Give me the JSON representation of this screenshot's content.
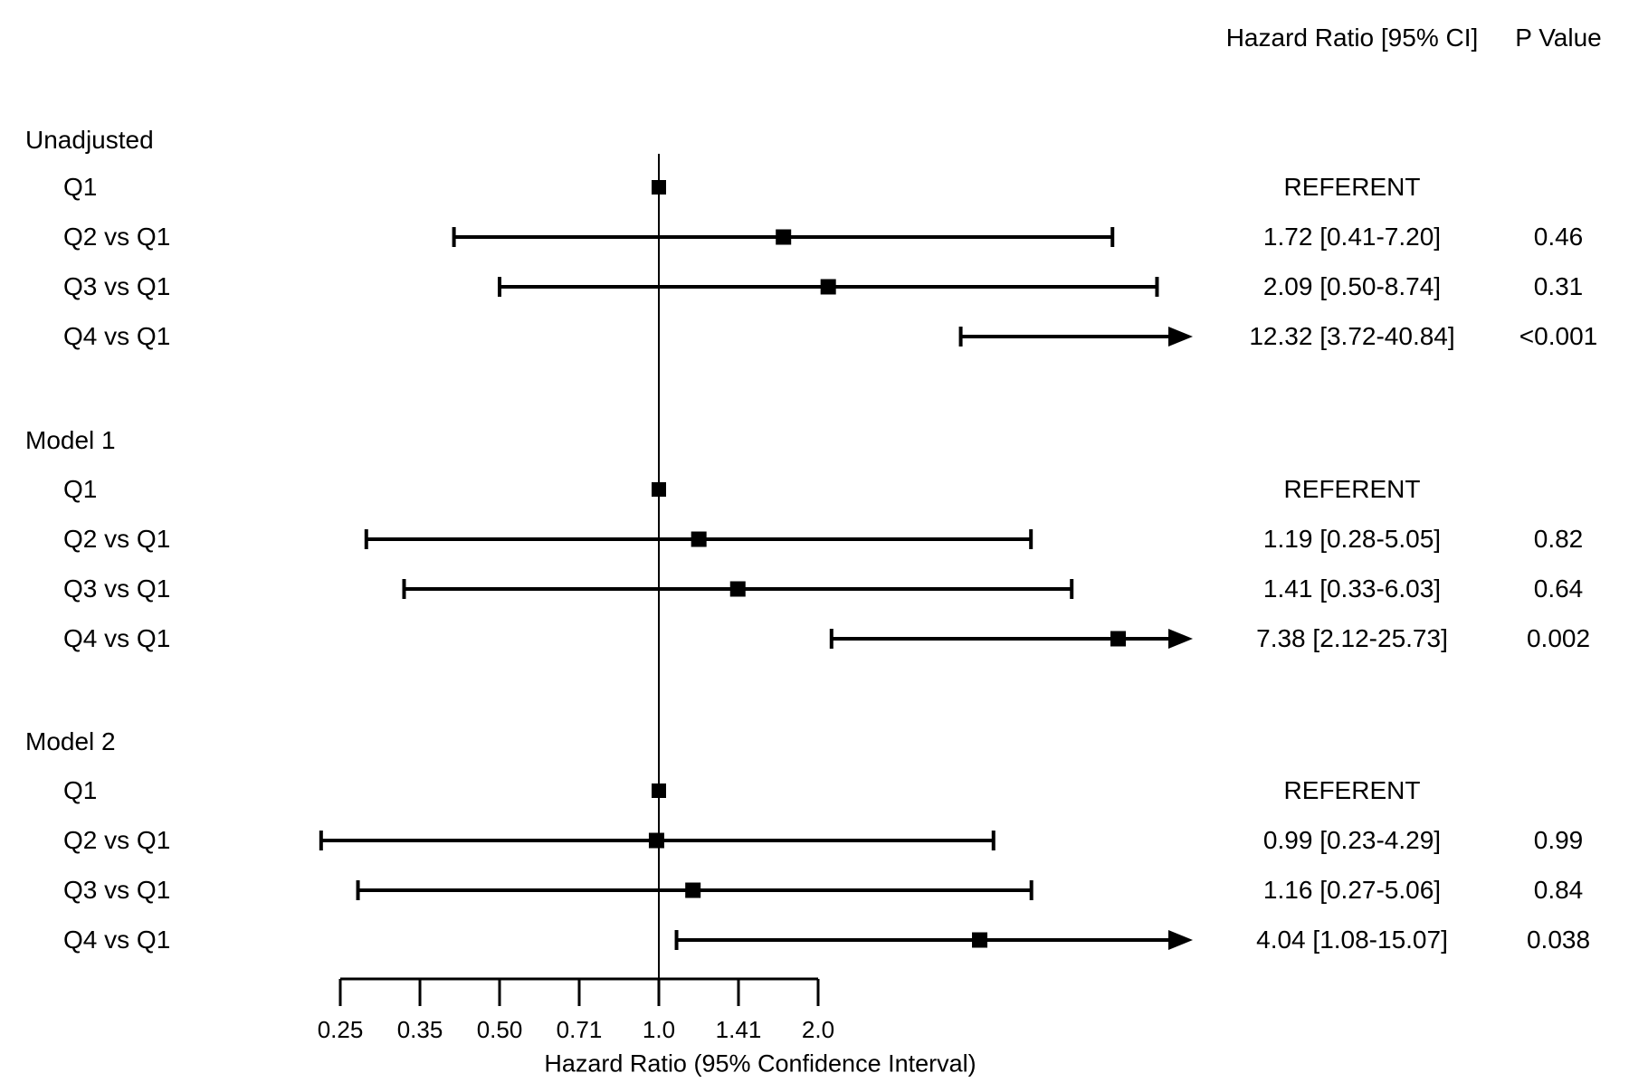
{
  "header": {
    "hr_col": "Hazard Ratio [95% CI]",
    "p_col": "P Value"
  },
  "chart_data": {
    "type": "forest",
    "x_axis": {
      "label": "Hazard Ratio (95% Confidence Interval)",
      "scale": "log2",
      "reference_line": 1.0,
      "ticks": [
        "0.25",
        "0.35",
        "0.50",
        "0.71",
        "1.0",
        "1.41",
        "2.0"
      ],
      "tick_values": [
        0.25,
        0.3536,
        0.5,
        0.7071,
        1.0,
        1.4142,
        2.0
      ],
      "arrow_clip_hr": 10.0
    },
    "groups": [
      {
        "label": "Unadjusted",
        "rows": [
          {
            "label": "Q1",
            "referent": true,
            "hr": 1.0,
            "hr_text": "REFERENT",
            "p_text": ""
          },
          {
            "label": "Q2 vs Q1",
            "referent": false,
            "hr": 1.72,
            "ci_low": 0.41,
            "ci_high": 7.2,
            "hr_text": "1.72 [0.41-7.20]",
            "p_text": "0.46"
          },
          {
            "label": "Q3 vs Q1",
            "referent": false,
            "hr": 2.09,
            "ci_low": 0.5,
            "ci_high": 8.74,
            "hr_text": "2.09 [0.50-8.74]",
            "p_text": "0.31"
          },
          {
            "label": "Q4 vs Q1",
            "referent": false,
            "hr": 12.32,
            "ci_low": 3.72,
            "ci_high": 40.84,
            "hr_text": "12.32 [3.72-40.84]",
            "p_text": "<0.001"
          }
        ]
      },
      {
        "label": "Model 1",
        "rows": [
          {
            "label": "Q1",
            "referent": true,
            "hr": 1.0,
            "hr_text": "REFERENT",
            "p_text": ""
          },
          {
            "label": "Q2 vs Q1",
            "referent": false,
            "hr": 1.19,
            "ci_low": 0.28,
            "ci_high": 5.05,
            "hr_text": "1.19 [0.28-5.05]",
            "p_text": "0.82"
          },
          {
            "label": "Q3 vs Q1",
            "referent": false,
            "hr": 1.41,
            "ci_low": 0.33,
            "ci_high": 6.03,
            "hr_text": "1.41 [0.33-6.03]",
            "p_text": "0.64"
          },
          {
            "label": "Q4 vs Q1",
            "referent": false,
            "hr": 7.38,
            "ci_low": 2.12,
            "ci_high": 25.73,
            "hr_text": "7.38 [2.12-25.73]",
            "p_text": "0.002"
          }
        ]
      },
      {
        "label": "Model 2",
        "rows": [
          {
            "label": "Q1",
            "referent": true,
            "hr": 1.0,
            "hr_text": "REFERENT",
            "p_text": ""
          },
          {
            "label": "Q2 vs Q1",
            "referent": false,
            "hr": 0.99,
            "ci_low": 0.23,
            "ci_high": 4.29,
            "hr_text": "0.99 [0.23-4.29]",
            "p_text": "0.99"
          },
          {
            "label": "Q3 vs Q1",
            "referent": false,
            "hr": 1.16,
            "ci_low": 0.27,
            "ci_high": 5.06,
            "hr_text": "1.16 [0.27-5.06]",
            "p_text": "0.84"
          },
          {
            "label": "Q4 vs Q1",
            "referent": false,
            "hr": 4.04,
            "ci_low": 1.08,
            "ci_high": 15.07,
            "hr_text": "4.04 [1.08-15.07]",
            "p_text": "0.038"
          }
        ]
      }
    ]
  }
}
